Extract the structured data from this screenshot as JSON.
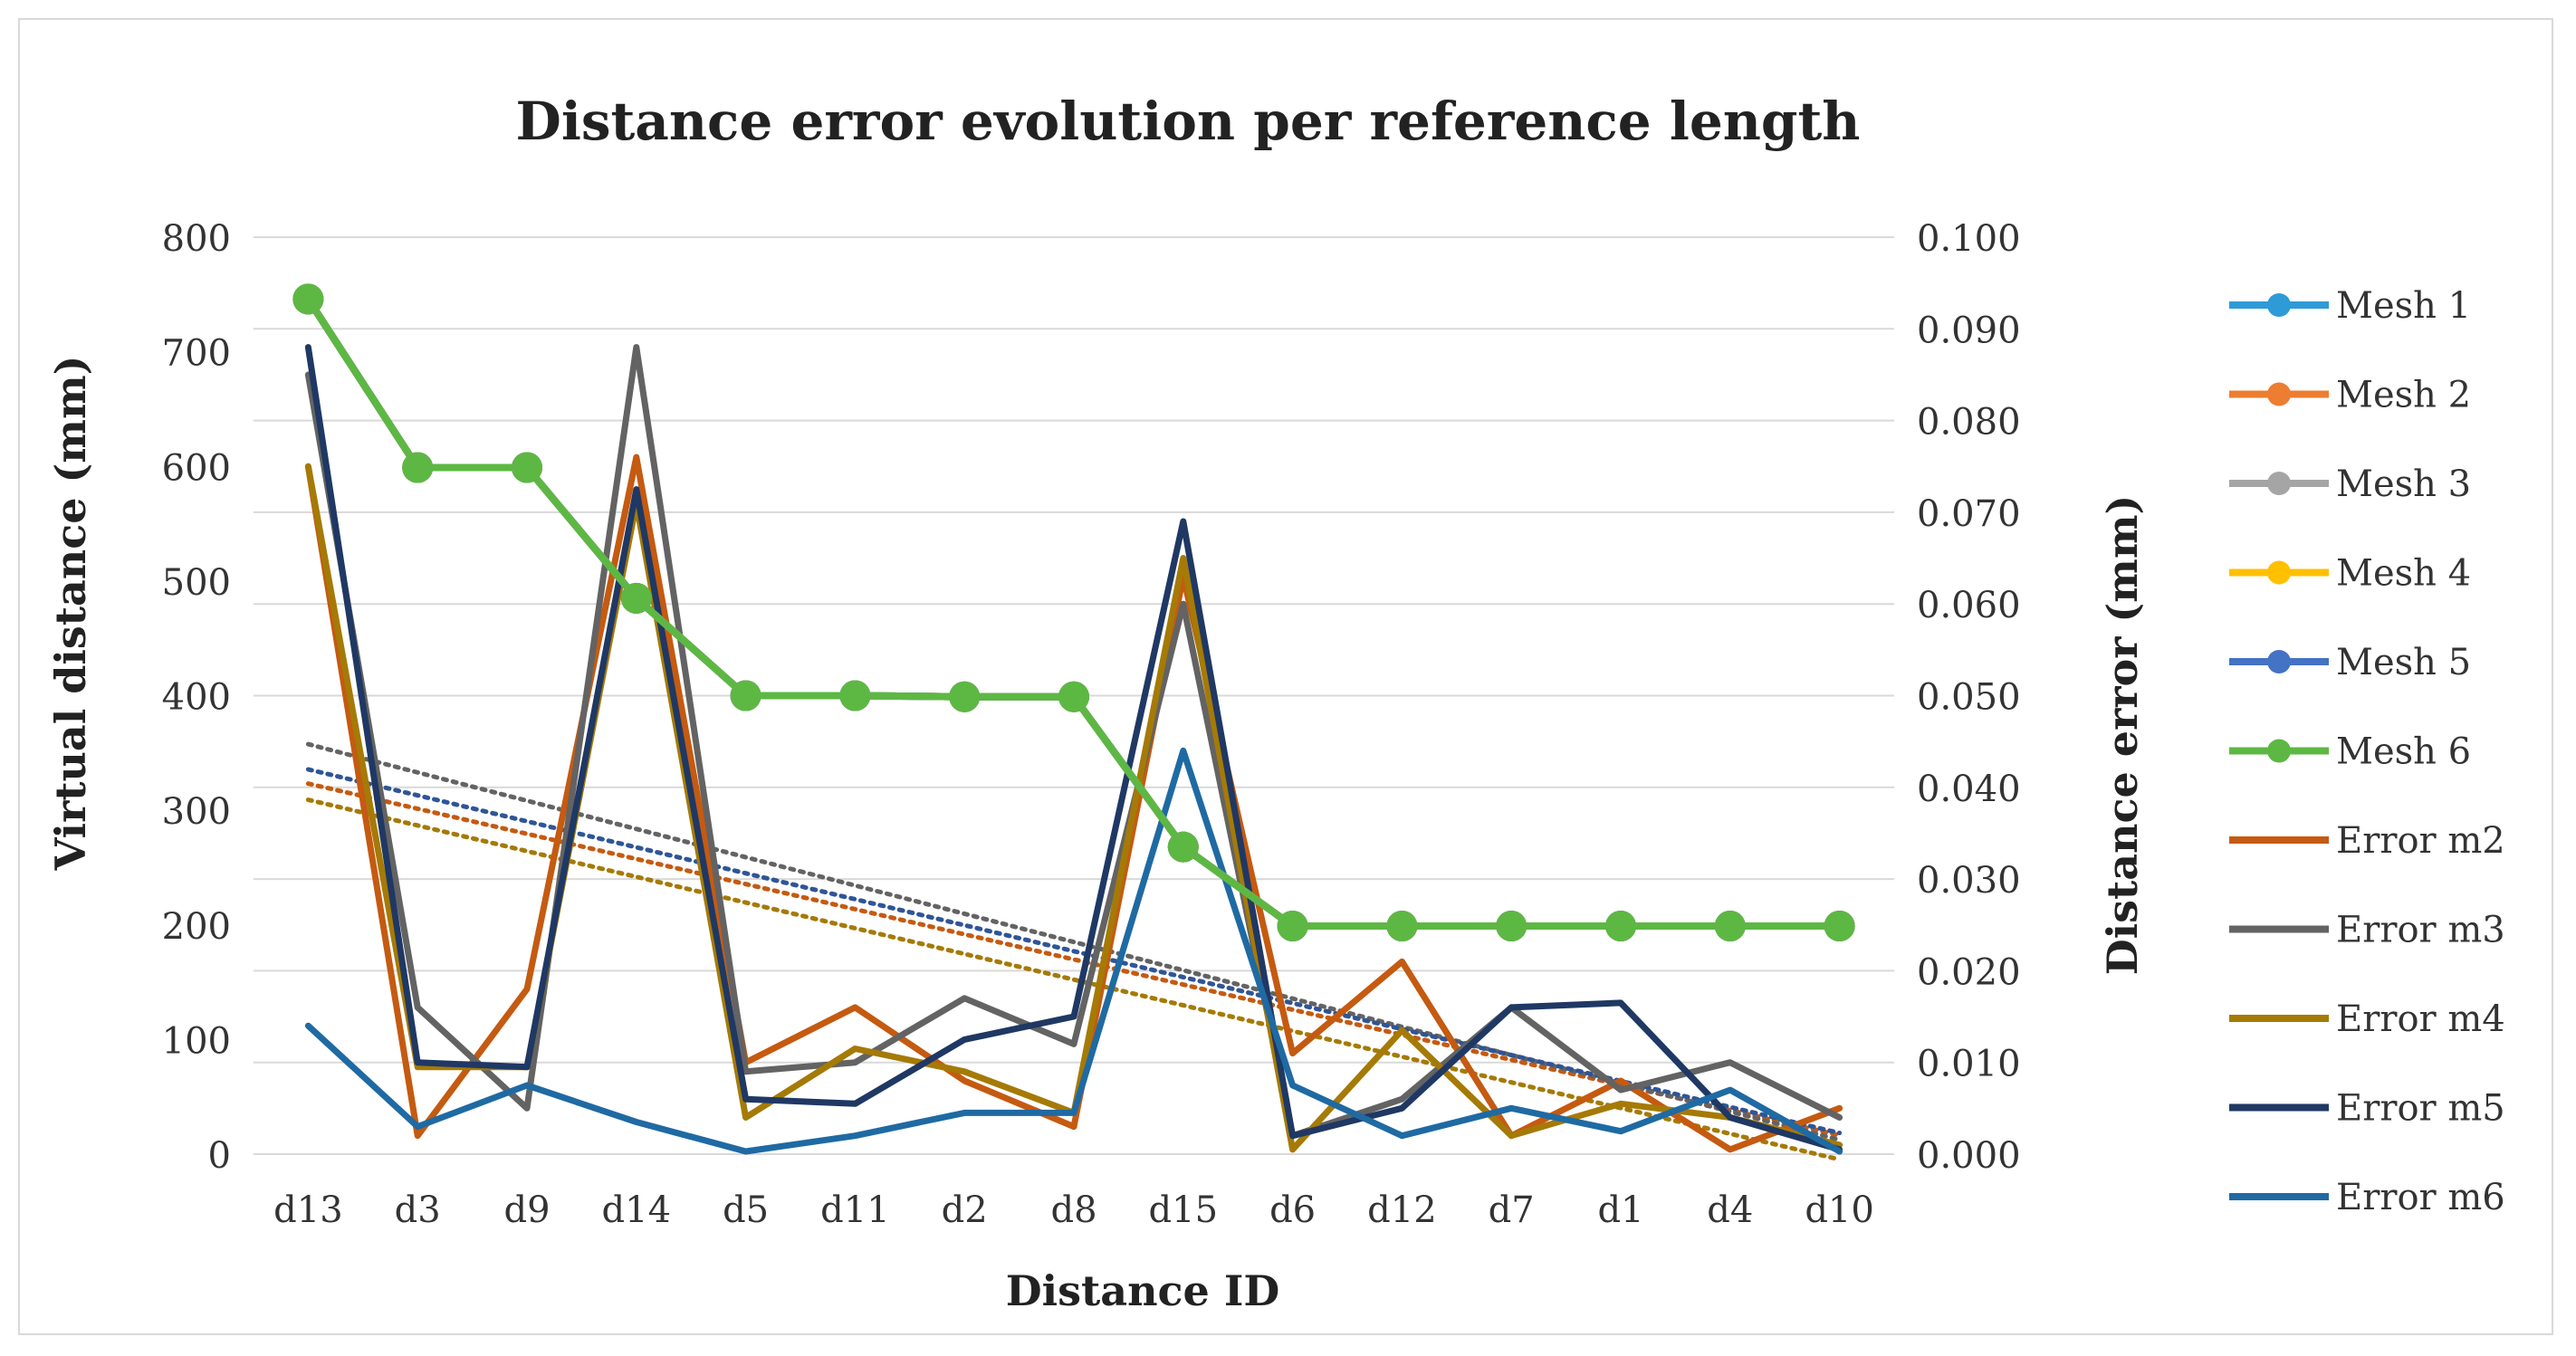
{
  "chart_data": {
    "type": "line",
    "title": "Distance error evolution per reference length",
    "xlabel": "Distance ID",
    "ylabel_left": "Virtual distance  (mm)",
    "ylabel_right": "Distance error (mm)",
    "ylim_left": [
      0,
      800
    ],
    "ylim_right": [
      0,
      0.1
    ],
    "left_ticks": [
      "0",
      "100",
      "200",
      "300",
      "400",
      "500",
      "600",
      "700",
      "800"
    ],
    "right_ticks": [
      "0.000",
      "0.010",
      "0.020",
      "0.030",
      "0.040",
      "0.050",
      "0.060",
      "0.070",
      "0.080",
      "0.090",
      "0.100"
    ],
    "categories": [
      "d13",
      "d3",
      "d9",
      "d14",
      "d5",
      "d11",
      "d2",
      "d8",
      "d15",
      "d6",
      "d12",
      "d7",
      "d1",
      "d4",
      "d10"
    ],
    "grid": true,
    "legend_position": "right",
    "series": [
      {
        "name": "Mesh 1",
        "axis": "left",
        "color": "#2E9BD6",
        "marker": true,
        "values": [
          746,
          599,
          599,
          485,
          400,
          400,
          399,
          399,
          268,
          199,
          199,
          199,
          199,
          199,
          199
        ]
      },
      {
        "name": "Mesh 2",
        "axis": "left",
        "color": "#ED7D31",
        "marker": true,
        "values": [
          746,
          599,
          599,
          485,
          400,
          400,
          399,
          399,
          268,
          199,
          199,
          199,
          199,
          199,
          199
        ]
      },
      {
        "name": "Mesh 3",
        "axis": "left",
        "color": "#A5A5A5",
        "marker": true,
        "values": [
          746,
          599,
          599,
          485,
          400,
          400,
          399,
          399,
          268,
          199,
          199,
          199,
          199,
          199,
          199
        ]
      },
      {
        "name": "Mesh 4",
        "axis": "left",
        "color": "#FFC000",
        "marker": true,
        "values": [
          746,
          599,
          599,
          485,
          400,
          400,
          399,
          399,
          268,
          199,
          199,
          199,
          199,
          199,
          199
        ]
      },
      {
        "name": "Mesh 5",
        "axis": "left",
        "color": "#4472C4",
        "marker": true,
        "values": [
          746,
          599,
          599,
          485,
          400,
          400,
          399,
          399,
          268,
          199,
          199,
          199,
          199,
          199,
          199
        ]
      },
      {
        "name": "Mesh 6",
        "axis": "left",
        "color": "#5DB843",
        "marker": true,
        "values": [
          746,
          599,
          599,
          485,
          400,
          400,
          399,
          399,
          268,
          199,
          199,
          199,
          199,
          199,
          199
        ]
      },
      {
        "name": "Error m2",
        "axis": "right",
        "color": "#C55A11",
        "marker": false,
        "values": [
          0.075,
          0.002,
          0.018,
          0.076,
          0.01,
          0.016,
          0.008,
          0.003,
          0.063,
          0.011,
          0.021,
          0.002,
          0.008,
          0.0005,
          0.005
        ]
      },
      {
        "name": "Error m3",
        "axis": "right",
        "color": "#636363",
        "marker": false,
        "values": [
          0.085,
          0.016,
          0.005,
          0.088,
          0.009,
          0.01,
          0.017,
          0.012,
          0.06,
          0.002,
          0.006,
          0.016,
          0.007,
          0.01,
          0.004
        ]
      },
      {
        "name": "Error m4",
        "axis": "right",
        "color": "#A57A06",
        "marker": false,
        "values": [
          0.075,
          0.0095,
          0.0095,
          0.071,
          0.004,
          0.0115,
          0.009,
          0.0045,
          0.065,
          0.0005,
          0.0135,
          0.002,
          0.0055,
          0.004,
          0.001
        ]
      },
      {
        "name": "Error m5",
        "axis": "right",
        "color": "#1F3864",
        "marker": false,
        "values": [
          0.088,
          0.01,
          0.0095,
          0.0725,
          0.006,
          0.0055,
          0.0125,
          0.015,
          0.069,
          0.002,
          0.005,
          0.016,
          0.0165,
          0.004,
          0.0005
        ]
      },
      {
        "name": "Error m6",
        "axis": "right",
        "color": "#1F6AA3",
        "marker": false,
        "values": [
          0.014,
          0.003,
          0.0075,
          0.0035,
          0.0003,
          0.002,
          0.0045,
          0.0045,
          0.044,
          0.0075,
          0.002,
          0.005,
          0.0025,
          0.007,
          0.0003
        ]
      }
    ],
    "trendlines": [
      {
        "series": "Error m2",
        "color": "#C55A11",
        "style": "dotted"
      },
      {
        "series": "Error m3",
        "color": "#636363",
        "style": "dotted"
      },
      {
        "series": "Error m4",
        "color": "#A57A06",
        "style": "dotted"
      },
      {
        "series": "Error m5",
        "color": "#2F5597",
        "style": "dotted"
      }
    ]
  }
}
